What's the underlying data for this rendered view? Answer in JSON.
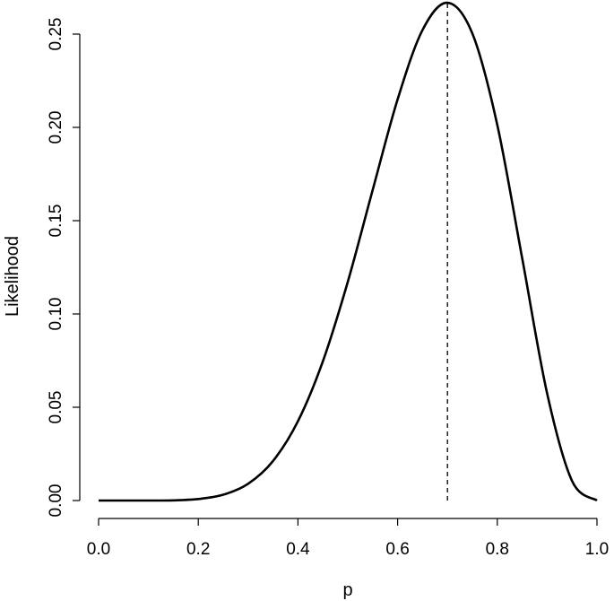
{
  "chart_data": {
    "type": "line",
    "title": "",
    "xlabel": "p",
    "ylabel": "Likelihood",
    "xlim": [
      0,
      1
    ],
    "ylim": [
      0,
      0.25
    ],
    "x_ticks": [
      0.0,
      0.2,
      0.4,
      0.6,
      0.8,
      1.0
    ],
    "x_tick_labels": [
      "0.0",
      "0.2",
      "0.4",
      "0.6",
      "0.8",
      "1.0"
    ],
    "y_ticks": [
      0.0,
      0.05,
      0.1,
      0.15,
      0.2,
      0.25
    ],
    "y_tick_labels": [
      "0.00",
      "0.05",
      "0.10",
      "0.15",
      "0.20",
      "0.25"
    ],
    "grid": false,
    "series": [
      {
        "x": [
          0.0,
          0.05,
          0.1,
          0.15,
          0.2,
          0.25,
          0.3,
          0.35,
          0.4,
          0.45,
          0.5,
          0.55,
          0.6,
          0.65,
          0.7,
          0.75,
          0.8,
          0.85,
          0.9,
          0.95,
          1.0
        ],
        "y": [
          0.0,
          0.0,
          0.0,
          0.0001,
          0.0008,
          0.0031,
          0.009,
          0.0212,
          0.0425,
          0.0746,
          0.1172,
          0.1665,
          0.215,
          0.2522,
          0.2668,
          0.2503,
          0.2013,
          0.1298,
          0.0574,
          0.0105,
          0.0
        ]
      }
    ],
    "vertical_line": {
      "x": 0.7,
      "y_top": 0.2668,
      "style": "dashed"
    }
  }
}
